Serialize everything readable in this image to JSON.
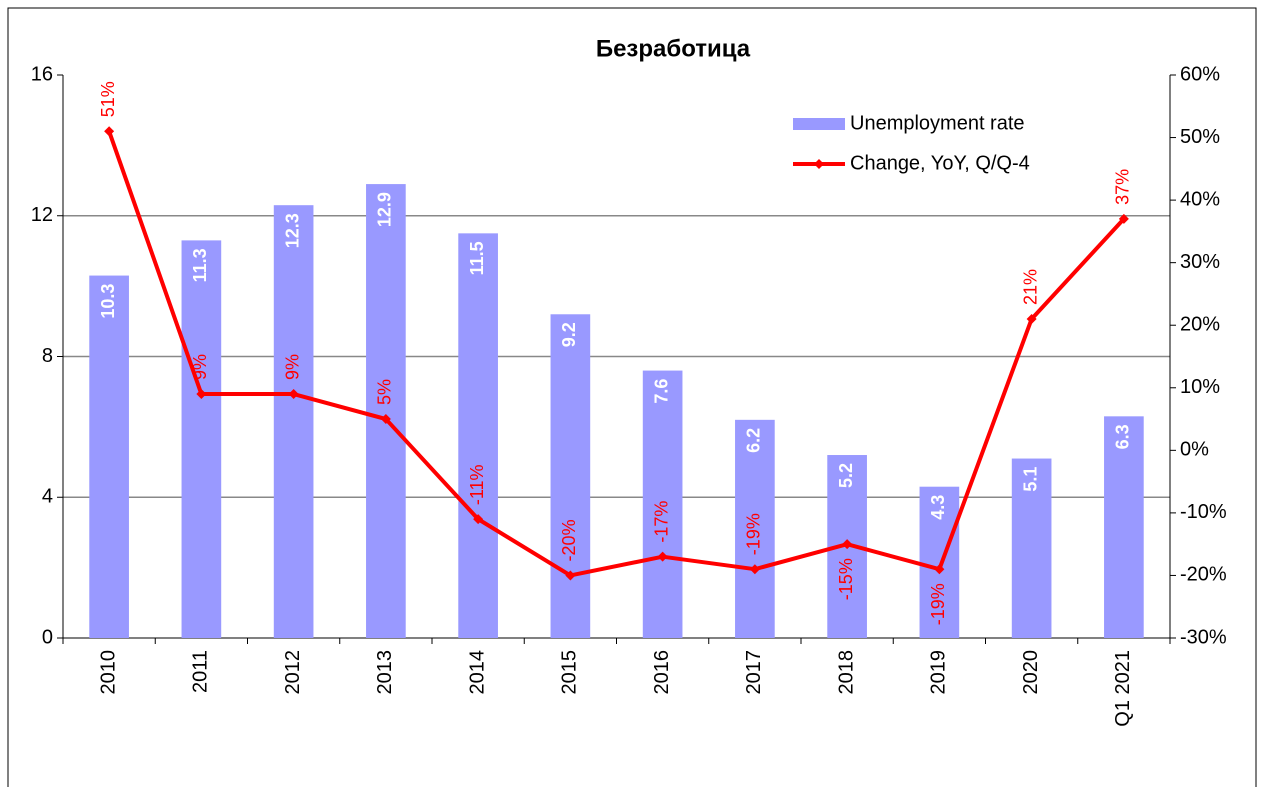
{
  "chart_data": {
    "type": "bar",
    "title": "Безработица",
    "categories": [
      "2010",
      "2011",
      "2012",
      "2013",
      "2014",
      "2015",
      "2016",
      "2017",
      "2018",
      "2019",
      "2020",
      "Q1 2021"
    ],
    "series": [
      {
        "name": "Unemployment rate",
        "type": "bar",
        "color": "#9999ff",
        "values": [
          10.3,
          11.3,
          12.3,
          12.9,
          11.5,
          9.2,
          7.6,
          6.2,
          5.2,
          4.3,
          5.1,
          6.3
        ]
      },
      {
        "name": "Change, YoY, Q/Q-4",
        "type": "line",
        "axis": "y2",
        "color": "#ff0000",
        "values": [
          51,
          9,
          9,
          5,
          -11,
          -20,
          -17,
          -19,
          -15,
          -19,
          21,
          37
        ],
        "value_labels": [
          "51%",
          "9%",
          "9%",
          "5%",
          "-11%",
          "-20%",
          "-17%",
          "-19%",
          "-15%",
          "-19%",
          "21%",
          "37%"
        ]
      }
    ],
    "ylim": [
      0,
      16
    ],
    "yticks": [
      0,
      4,
      8,
      12,
      16
    ],
    "y2lim": [
      -30,
      60
    ],
    "y2ticks": [
      {
        "value": -30,
        "label": "-30%"
      },
      {
        "value": -20,
        "label": "-20%"
      },
      {
        "value": -10,
        "label": "-10%"
      },
      {
        "value": 0,
        "label": "0%"
      },
      {
        "value": 10,
        "label": "10%"
      },
      {
        "value": 20,
        "label": "20%"
      },
      {
        "value": 30,
        "label": "30%"
      },
      {
        "value": 40,
        "label": "40%"
      },
      {
        "value": 50,
        "label": "50%"
      },
      {
        "value": 60,
        "label": "60%"
      }
    ],
    "grid": true,
    "legend": "top-right"
  }
}
